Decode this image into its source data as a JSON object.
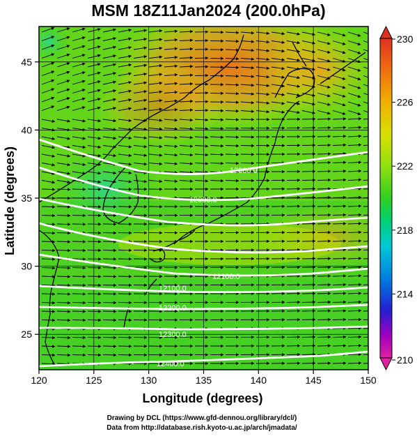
{
  "title": "MSM 18Z11Jan2024 (200.0hPa)",
  "axes": {
    "xlabel": "Longitude (degrees)",
    "ylabel": "Latitude  (degrees)",
    "xlim": [
      120,
      150
    ],
    "ylim": [
      22.4,
      47.6
    ],
    "xticks": [
      "120",
      "125",
      "130",
      "135",
      "140",
      "145",
      "150"
    ],
    "yticks": [
      "25",
      "30",
      "35",
      "40",
      "45"
    ]
  },
  "colorbar": {
    "min": 210,
    "max": 230,
    "ticks": [
      "230",
      "226",
      "222",
      "218",
      "214",
      "210"
    ],
    "colors": [
      "#e020a0",
      "#a000c0",
      "#2020d0",
      "#0080e0",
      "#00c8d8",
      "#00d070",
      "#30d020",
      "#90e010",
      "#d8e000",
      "#f0b000",
      "#f07010",
      "#e03020"
    ]
  },
  "contours": {
    "color": "#ffffff",
    "labels": [
      "12000.0",
      "12000.0",
      "12100.0",
      "12100.0",
      "12200.0",
      "12300.0",
      "12400.0"
    ]
  },
  "credits": {
    "line1": "Drawing by DCL (https://www.gfd-dennou.org/library/dcl/)",
    "line2": "Data from http://database.rish.kyoto-u.ac.jp/arch/jmadata/"
  }
}
